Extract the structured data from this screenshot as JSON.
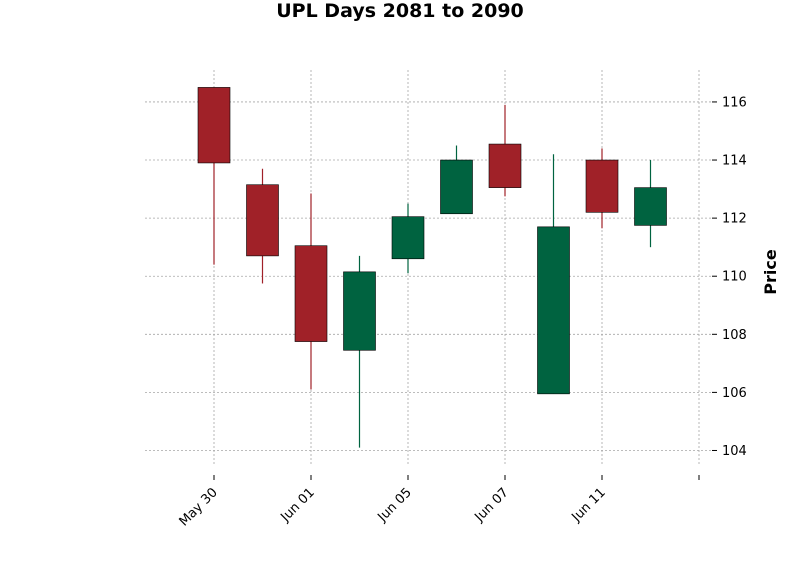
{
  "chart_data": {
    "type": "candlestick",
    "title": "UPL Days 2081 to 2090",
    "xlabel": "",
    "ylabel": "Price",
    "ylim": [
      103.5,
      117.1
    ],
    "y_ticks": [
      104,
      106,
      108,
      110,
      112,
      114,
      116
    ],
    "x_tick_labels": [
      {
        "index": 0,
        "label": "May 30"
      },
      {
        "index": 2,
        "label": "Jun 01"
      },
      {
        "index": 4,
        "label": "Jun 05"
      },
      {
        "index": 6,
        "label": "Jun 07"
      },
      {
        "index": 8,
        "label": "Jun 11"
      },
      {
        "index": 10,
        "label": ""
      }
    ],
    "grid": true,
    "colors": {
      "up": "#006340",
      "down": "#a02128"
    },
    "candles": [
      {
        "open": 116.5,
        "high": 116.5,
        "low": 110.4,
        "close": 113.9
      },
      {
        "open": 113.15,
        "high": 113.7,
        "low": 109.75,
        "close": 110.7
      },
      {
        "open": 111.05,
        "high": 112.85,
        "low": 106.1,
        "close": 107.75
      },
      {
        "open": 107.45,
        "high": 110.7,
        "low": 104.1,
        "close": 110.15
      },
      {
        "open": 110.6,
        "high": 112.5,
        "low": 110.1,
        "close": 112.05
      },
      {
        "open": 112.15,
        "high": 114.5,
        "low": 112.15,
        "close": 114.0
      },
      {
        "open": 114.55,
        "high": 115.9,
        "low": 112.75,
        "close": 113.05
      },
      {
        "open": 105.95,
        "high": 114.2,
        "low": 105.95,
        "close": 111.7
      },
      {
        "open": 114.0,
        "high": 114.4,
        "low": 111.65,
        "close": 112.2
      },
      {
        "open": 111.75,
        "high": 114.0,
        "low": 111.0,
        "close": 113.05
      }
    ]
  }
}
